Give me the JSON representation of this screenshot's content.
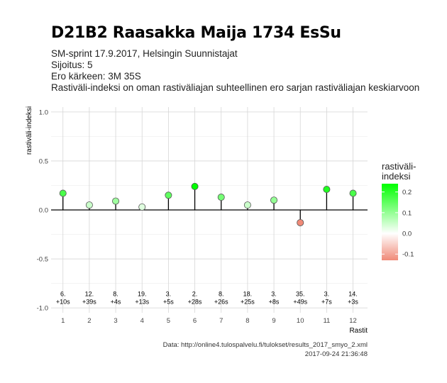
{
  "header": {
    "title": "D21B2 Raasakka Maija 1734 EsSu",
    "line1": "SM-sprint 17.9.2017, Helsingin Suunnistajat",
    "line2": "Sijoitus: 5",
    "line3": "Ero kärkeen: 3M 35S",
    "line4": "Rastiväli-indeksi on oman rastiväliajan suhteellinen ero sarjan rastiväliajan keskiarvoon"
  },
  "caption": {
    "source": "Data: http://online4.tulospalvelu.fi/tulokset/results_2017_smyo_2.xml",
    "timestamp": "2017-09-24 21:36:48"
  },
  "legend": {
    "title_line1": "rastiväli-",
    "title_line2": "indeksi",
    "ticks": [
      "0.2",
      "0.1",
      "0.0",
      "-0.1"
    ],
    "tick_values": [
      0.2,
      0.1,
      0.0,
      -0.1
    ],
    "range": [
      -0.13,
      0.24
    ],
    "color_high": "#00ff00",
    "color_mid": "#ffffff",
    "color_low": "#f08a78"
  },
  "chart_data": {
    "type": "scatter",
    "subtype": "lollipop",
    "xlabel": "Rastit",
    "ylabel": "rastiväli-indeksi",
    "xlim": [
      0.55,
      12.55
    ],
    "ylim": [
      -1.05,
      1.05
    ],
    "x_ticks": [
      1,
      2,
      3,
      4,
      5,
      6,
      7,
      8,
      9,
      10,
      11,
      12
    ],
    "y_ticks": [
      -1.0,
      -0.5,
      0.0,
      0.5,
      1.0
    ],
    "y_tick_labels": [
      "-1.0",
      "-0.5",
      "0.0",
      "0.5",
      "1.0"
    ],
    "grid": true,
    "x": [
      1,
      2,
      3,
      4,
      5,
      6,
      7,
      8,
      9,
      10,
      11,
      12
    ],
    "values": [
      0.17,
      0.05,
      0.09,
      0.03,
      0.15,
      0.24,
      0.13,
      0.05,
      0.1,
      -0.13,
      0.21,
      0.17
    ],
    "annotations": [
      {
        "x": 1,
        "rank": "6.",
        "diff": "+10s"
      },
      {
        "x": 2,
        "rank": "12.",
        "diff": "+39s"
      },
      {
        "x": 3,
        "rank": "8.",
        "diff": "+4s"
      },
      {
        "x": 4,
        "rank": "19.",
        "diff": "+13s"
      },
      {
        "x": 5,
        "rank": "3.",
        "diff": "+5s"
      },
      {
        "x": 6,
        "rank": "2.",
        "diff": "+28s"
      },
      {
        "x": 7,
        "rank": "8.",
        "diff": "+26s"
      },
      {
        "x": 8,
        "rank": "18.",
        "diff": "+25s"
      },
      {
        "x": 9,
        "rank": "3.",
        "diff": "+8s"
      },
      {
        "x": 10,
        "rank": "35.",
        "diff": "+49s"
      },
      {
        "x": 11,
        "rank": "3.",
        "diff": "+7s"
      },
      {
        "x": 12,
        "rank": "14.",
        "diff": "+3s"
      }
    ],
    "annotation_y": -0.91
  }
}
